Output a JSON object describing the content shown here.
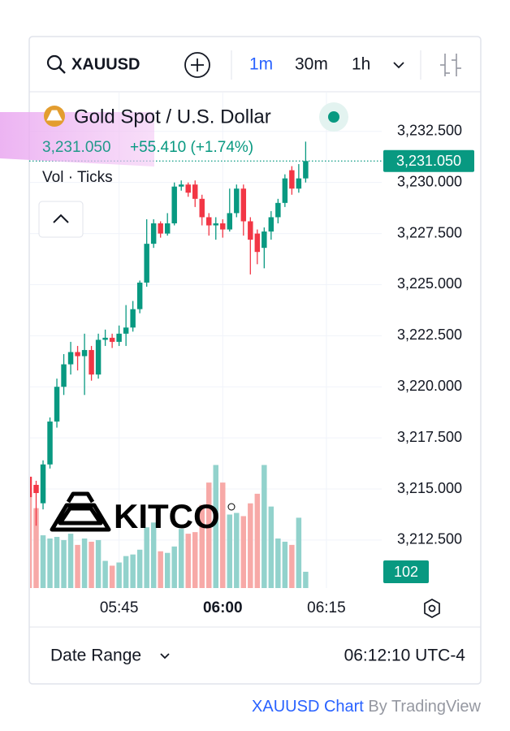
{
  "header": {
    "symbol": "XAUUSD",
    "intervals": [
      "1m",
      "30m",
      "1h"
    ]
  },
  "legend": {
    "title": "Gold Spot / U.S. Dollar",
    "change": "+55.410 (+1.74%)",
    "volume_label": "Vol · Ticks"
  },
  "logo": "KITCO",
  "bottom_bar": {
    "date_range": "Date Range",
    "time": "06:12:10 UTC-4"
  },
  "footer": {
    "link": "XAUUSD Chart",
    "by": "By TradingView"
  },
  "chart_data": {
    "type": "candlestick",
    "x": [
      "05:32",
      "05:33",
      "05:34",
      "05:35",
      "05:36",
      "05:37",
      "05:38",
      "05:39",
      "05:40",
      "05:41",
      "05:42",
      "05:43",
      "05:44",
      "05:45",
      "05:46",
      "05:47",
      "05:48",
      "05:49",
      "05:50",
      "05:51",
      "05:52",
      "05:53",
      "05:54",
      "05:55",
      "05:56",
      "05:57",
      "05:58",
      "05:59",
      "06:00",
      "06:01",
      "06:02",
      "06:03",
      "06:04",
      "06:05",
      "06:06",
      "06:07",
      "06:08",
      "06:09",
      "06:10",
      "06:11",
      "06:12"
    ],
    "open": [
      3215.6,
      3215.2,
      3214.3,
      3216.2,
      3218.3,
      3220.0,
      3221.1,
      3221.7,
      3221.5,
      3221.8,
      3220.6,
      3222.3,
      3222.4,
      3222.2,
      3222.6,
      3222.9,
      3223.8,
      3225.1,
      3227.0,
      3228.0,
      3227.5,
      3228.0,
      3229.8,
      3229.9,
      3229.9,
      3229.2,
      3228.3,
      3227.9,
      3228.0,
      3227.7,
      3228.5,
      3229.7,
      3228.1,
      3227.5,
      3226.8,
      3227.6,
      3228.3,
      3229.0,
      3230.6,
      3229.7,
      3230.2
    ],
    "high": [
      3216.0,
      3215.4,
      3216.4,
      3218.5,
      3220.4,
      3221.6,
      3222.2,
      3222.0,
      3222.6,
      3222.0,
      3222.6,
      3222.8,
      3222.6,
      3223.0,
      3224.0,
      3224.2,
      3225.2,
      3228.2,
      3228.2,
      3228.1,
      3228.5,
      3230.0,
      3230.1,
      3230.0,
      3230.1,
      3229.4,
      3228.5,
      3228.3,
      3228.2,
      3229.7,
      3229.9,
      3229.9,
      3228.3,
      3227.7,
      3227.8,
      3228.6,
      3229.2,
      3230.4,
      3230.8,
      3230.9,
      3232.0
    ],
    "low": [
      3212.0,
      3213.2,
      3214.0,
      3216.0,
      3218.0,
      3219.6,
      3220.6,
      3220.8,
      3219.6,
      3220.3,
      3220.4,
      3222.0,
      3221.9,
      3222.0,
      3222.0,
      3222.7,
      3223.6,
      3224.9,
      3226.8,
      3227.3,
      3227.4,
      3227.9,
      3229.6,
      3229.3,
      3228.8,
      3227.9,
      3227.4,
      3227.2,
      3227.3,
      3227.6,
      3228.3,
      3227.4,
      3225.5,
      3226.0,
      3225.8,
      3227.2,
      3228.0,
      3228.8,
      3229.4,
      3229.5,
      3230.0
    ],
    "close": [
      3214.6,
      3214.8,
      3216.2,
      3218.3,
      3220.0,
      3221.1,
      3221.7,
      3221.5,
      3221.8,
      3220.6,
      3222.3,
      3222.4,
      3222.2,
      3222.6,
      3222.9,
      3223.8,
      3225.1,
      3227.0,
      3228.0,
      3227.5,
      3228.0,
      3229.8,
      3229.9,
      3229.5,
      3229.2,
      3228.3,
      3227.9,
      3228.0,
      3227.7,
      3228.5,
      3229.7,
      3228.1,
      3227.2,
      3226.6,
      3227.6,
      3228.3,
      3229.0,
      3230.2,
      3229.7,
      3230.2,
      3231.05
    ],
    "last_price_label": "3,231.050",
    "up_color": "#089981",
    "down_color": "#f23645",
    "volume": {
      "up_color": "#92d2cc",
      "down_color": "#f7a9a7",
      "axis": "y2",
      "values": [
        600,
        500,
        330,
        310,
        320,
        300,
        340,
        270,
        310,
        290,
        300,
        170,
        140,
        160,
        200,
        210,
        240,
        380,
        410,
        230,
        220,
        260,
        370,
        340,
        350,
        520,
        660,
        770,
        660,
        460,
        470,
        450,
        530,
        590,
        770,
        510,
        310,
        290,
        270,
        440,
        102
      ]
    },
    "ylim": [
      3210.15,
      3234.4
    ],
    "yticks": [
      {
        "value": 3212.5,
        "label": "3,212.500"
      },
      {
        "value": 3215,
        "label": "3,215.000"
      },
      {
        "value": 3217.5,
        "label": "3,217.500"
      },
      {
        "value": 3220,
        "label": "3,220.000"
      },
      {
        "value": 3222.5,
        "label": "3,222.500"
      },
      {
        "value": 3225,
        "label": "3,225.000"
      },
      {
        "value": 3227.5,
        "label": "3,227.500"
      },
      {
        "value": 3230,
        "label": "3,230.000"
      },
      {
        "value": 3232.5,
        "label": "3,232.500"
      }
    ],
    "y2lim": [
      0,
      3100
    ],
    "xlim": [
      "05:32",
      "06:23"
    ],
    "xticks": [
      "05:45",
      "06:00",
      "06:15"
    ],
    "grid": true
  }
}
